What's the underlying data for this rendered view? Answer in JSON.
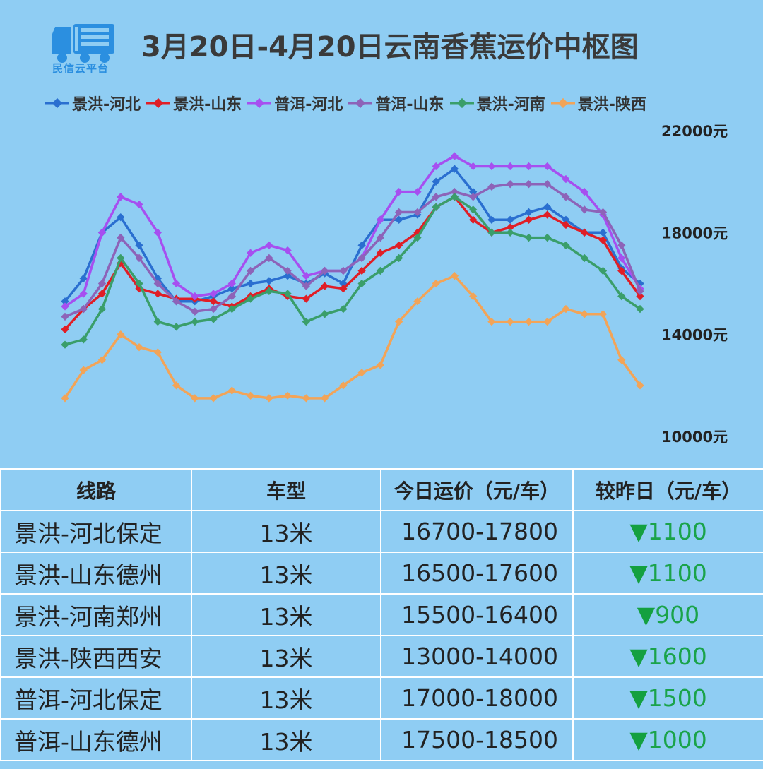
{
  "title": "3月20日-4月20日云南香蕉运价中枢图",
  "logo_text": "民信云平台",
  "chart_data": {
    "type": "line",
    "title": "3月20日-4月20日云南香蕉运价中枢图",
    "y_tick_labels": [
      "22000元",
      "18000元",
      "14000元",
      "10000元"
    ],
    "ylim": [
      10000,
      22000
    ],
    "y_ticks": [
      22000,
      18000,
      14000,
      10000
    ],
    "legend_position": "top",
    "grid": false,
    "series": [
      {
        "name": "景洪-河北",
        "color": "#2a6fd0",
        "values": [
          15300,
          16200,
          18000,
          18600,
          17500,
          16200,
          15300,
          15300,
          15500,
          15800,
          16000,
          16100,
          16300,
          16000,
          16400,
          16000,
          17500,
          18500,
          18500,
          18700,
          20000,
          20500,
          19600,
          18500,
          18500,
          18800,
          19000,
          18500,
          18000,
          18000,
          16600,
          16000
        ]
      },
      {
        "name": "景洪-山东",
        "color": "#e01e26",
        "values": [
          14200,
          15000,
          15600,
          16800,
          15800,
          15600,
          15400,
          15400,
          15300,
          15100,
          15500,
          15800,
          15500,
          15400,
          15900,
          15800,
          16500,
          17200,
          17500,
          18000,
          19000,
          19400,
          18500,
          18000,
          18200,
          18500,
          18700,
          18300,
          18000,
          17700,
          16500,
          15500
        ]
      },
      {
        "name": "普洱-河北",
        "color": "#a64ff0",
        "values": [
          15100,
          15600,
          18000,
          19400,
          19100,
          18000,
          16000,
          15500,
          15600,
          16000,
          17200,
          17500,
          17300,
          16300,
          16500,
          16500,
          17000,
          18500,
          19600,
          19600,
          20600,
          21000,
          20600,
          20600,
          20600,
          20600,
          20600,
          20100,
          19600,
          18700,
          17000,
          15800
        ]
      },
      {
        "name": "普洱-山东",
        "color": "#8d63b8",
        "values": [
          14700,
          15000,
          16000,
          17800,
          17000,
          16000,
          15300,
          14900,
          15000,
          15500,
          16500,
          17000,
          16500,
          15900,
          16500,
          16500,
          17000,
          17800,
          18800,
          18800,
          19400,
          19600,
          19400,
          19800,
          19900,
          19900,
          19900,
          19400,
          18900,
          18800,
          17500,
          15700
        ]
      },
      {
        "name": "景洪-河南",
        "color": "#3a9e6a",
        "values": [
          13600,
          13800,
          15000,
          17000,
          16000,
          14500,
          14300,
          14500,
          14600,
          15000,
          15400,
          15700,
          15600,
          14500,
          14800,
          15000,
          16000,
          16500,
          17000,
          17800,
          19000,
          19400,
          18900,
          18000,
          18000,
          17800,
          17800,
          17500,
          17000,
          16500,
          15500,
          15000
        ]
      },
      {
        "name": "景洪-陕西",
        "color": "#f2a458",
        "values": [
          11500,
          12600,
          13000,
          14000,
          13500,
          13300,
          12000,
          11500,
          11500,
          11800,
          11600,
          11500,
          11600,
          11500,
          11500,
          12000,
          12500,
          12800,
          14500,
          15300,
          16000,
          16300,
          15500,
          14500,
          14500,
          14500,
          14500,
          15000,
          14800,
          14800,
          13000,
          12000
        ]
      }
    ]
  },
  "table": {
    "headers": [
      "线路",
      "车型",
      "今日运价（元/车）",
      "较昨日（元/车）"
    ],
    "arrow": "▼",
    "rows": [
      {
        "route": "景洪-河北保定",
        "type": "13米",
        "price": "16700-17800",
        "change": "1100"
      },
      {
        "route": "景洪-山东德州",
        "type": "13米",
        "price": "16500-17600",
        "change": "1100"
      },
      {
        "route": "景洪-河南郑州",
        "type": "13米",
        "price": "15500-16400",
        "change": "900"
      },
      {
        "route": "景洪-陕西西安",
        "type": "13米",
        "price": "13000-14000",
        "change": "1600"
      },
      {
        "route": "普洱-河北保定",
        "type": "13米",
        "price": "17000-18000",
        "change": "1500"
      },
      {
        "route": "普洱-山东德州",
        "type": "13米",
        "price": "17500-18500",
        "change": "1000"
      }
    ]
  }
}
